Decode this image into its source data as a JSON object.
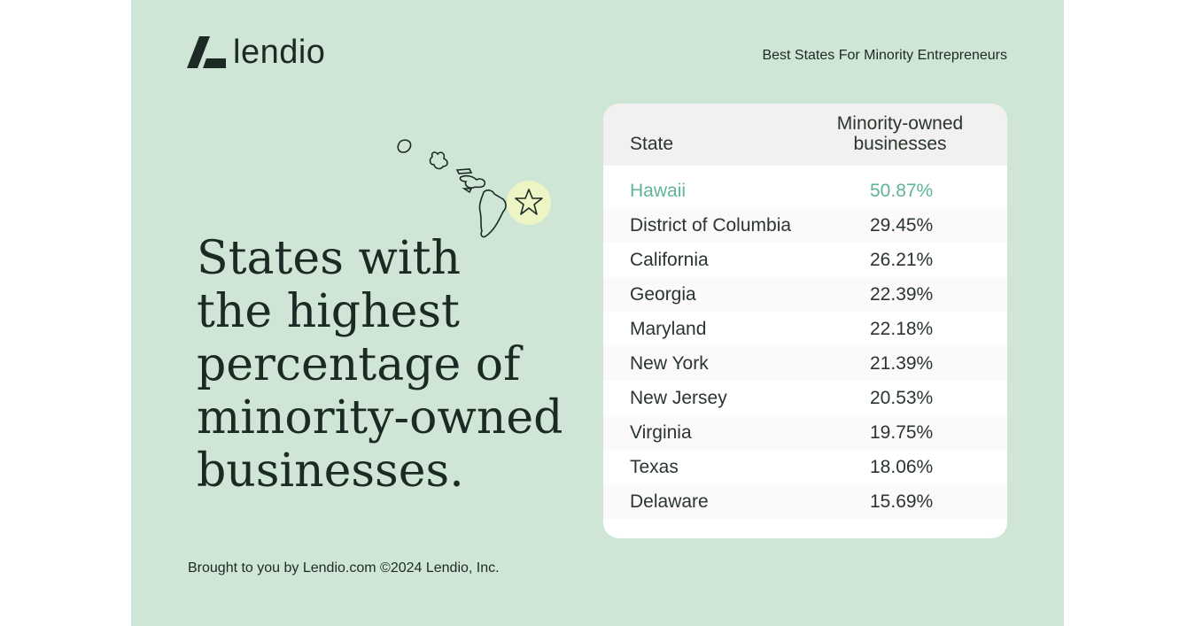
{
  "brand": {
    "name": "lendio",
    "color": "#1b2b24"
  },
  "header": {
    "title": "Best States For Minority Entrepreneurs"
  },
  "headline": {
    "lines": [
      "States with",
      "the highest",
      "percentage of",
      "minority-owned",
      "businesses."
    ]
  },
  "illustration": {
    "icon": "hawaii-islands-map-with-star",
    "accent": "#eef5c4"
  },
  "table": {
    "headers": {
      "state": "State",
      "value_line1": "Minority-owned",
      "value_line2": "businesses"
    },
    "highlight_color": "#5fb49a",
    "rows": [
      {
        "state": "Hawaii",
        "value": "50.87%",
        "highlight": true
      },
      {
        "state": "District of Columbia",
        "value": "29.45%"
      },
      {
        "state": "California",
        "value": "26.21%"
      },
      {
        "state": "Georgia",
        "value": "22.39%"
      },
      {
        "state": "Maryland",
        "value": "22.18%"
      },
      {
        "state": "New York",
        "value": "21.39%"
      },
      {
        "state": "New Jersey",
        "value": "20.53%"
      },
      {
        "state": "Virginia",
        "value": "19.75%"
      },
      {
        "state": "Texas",
        "value": "18.06%"
      },
      {
        "state": "Delaware",
        "value": "15.69%"
      }
    ]
  },
  "footer": {
    "text": "Brought to you by Lendio.com ©2024 Lendio, Inc."
  },
  "colors": {
    "background": "#cfe6d6",
    "table_header_bg": "#f3f1ef"
  }
}
